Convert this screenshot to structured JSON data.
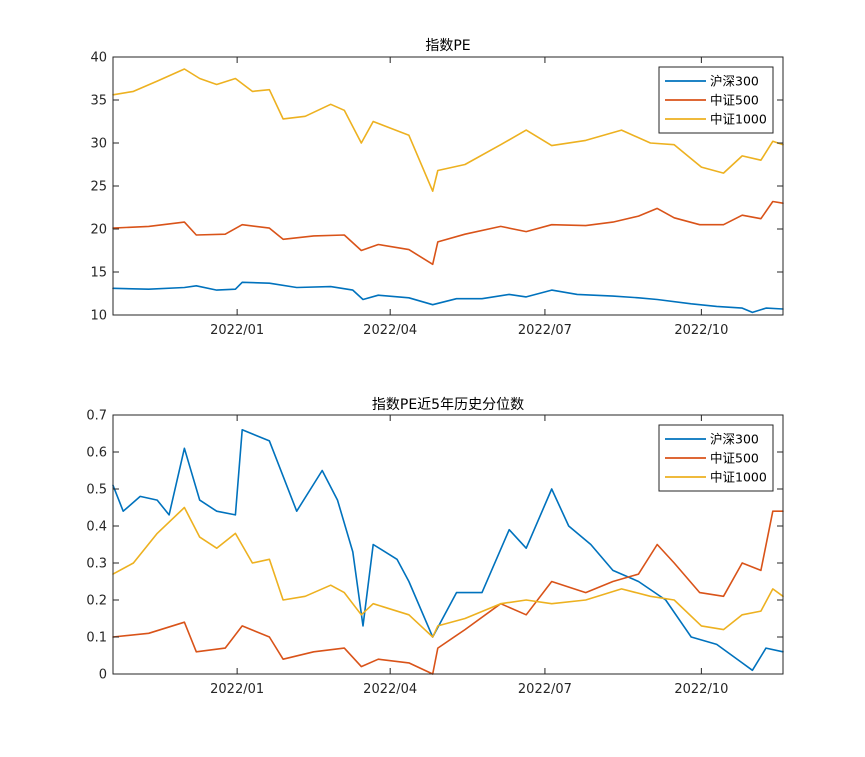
{
  "chart_data": [
    {
      "type": "line",
      "title": "指数PE",
      "xlabel": "",
      "ylabel": "",
      "x_range": [
        "2021-10-20",
        "2022-11-18"
      ],
      "ylim": [
        10,
        40
      ],
      "x_ticks": [
        {
          "date": "2022-01-01",
          "label": "2022/01"
        },
        {
          "date": "2022-04-01",
          "label": "2022/04"
        },
        {
          "date": "2022-07-01",
          "label": "2022/07"
        },
        {
          "date": "2022-10-01",
          "label": "2022/10"
        }
      ],
      "y_ticks": [
        {
          "value": 10,
          "label": "10"
        },
        {
          "value": 15,
          "label": "15"
        },
        {
          "value": 20,
          "label": "20"
        },
        {
          "value": 25,
          "label": "25"
        },
        {
          "value": 30,
          "label": "30"
        },
        {
          "value": 35,
          "label": "35"
        },
        {
          "value": 40,
          "label": "40"
        }
      ],
      "grid": false,
      "legend_position": "top-right",
      "series": [
        {
          "name": "沪深300",
          "color": "#0072BD",
          "points": [
            [
              "2021-10-20",
              13.1
            ],
            [
              "2021-11-10",
              13.0
            ],
            [
              "2021-12-01",
              13.2
            ],
            [
              "2021-12-08",
              13.4
            ],
            [
              "2021-12-20",
              12.9
            ],
            [
              "2021-12-31",
              13.0
            ],
            [
              "2022-01-04",
              13.8
            ],
            [
              "2022-01-20",
              13.7
            ],
            [
              "2022-02-05",
              13.2
            ],
            [
              "2022-02-25",
              13.3
            ],
            [
              "2022-03-10",
              12.9
            ],
            [
              "2022-03-16",
              11.8
            ],
            [
              "2022-03-25",
              12.3
            ],
            [
              "2022-04-12",
              12.0
            ],
            [
              "2022-04-26",
              11.2
            ],
            [
              "2022-05-10",
              11.9
            ],
            [
              "2022-05-25",
              11.9
            ],
            [
              "2022-06-10",
              12.4
            ],
            [
              "2022-06-20",
              12.1
            ],
            [
              "2022-07-05",
              12.9
            ],
            [
              "2022-07-20",
              12.4
            ],
            [
              "2022-08-10",
              12.2
            ],
            [
              "2022-08-25",
              12.0
            ],
            [
              "2022-09-05",
              11.8
            ],
            [
              "2022-09-25",
              11.3
            ],
            [
              "2022-10-10",
              11.0
            ],
            [
              "2022-10-25",
              10.8
            ],
            [
              "2022-10-31",
              10.3
            ],
            [
              "2022-11-08",
              10.8
            ],
            [
              "2022-11-18",
              10.7
            ]
          ]
        },
        {
          "name": "中证500",
          "color": "#D95319",
          "points": [
            [
              "2021-10-20",
              20.1
            ],
            [
              "2021-11-10",
              20.3
            ],
            [
              "2021-12-01",
              20.8
            ],
            [
              "2021-12-08",
              19.3
            ],
            [
              "2021-12-25",
              19.4
            ],
            [
              "2022-01-04",
              20.5
            ],
            [
              "2022-01-20",
              20.1
            ],
            [
              "2022-01-28",
              18.8
            ],
            [
              "2022-02-15",
              19.2
            ],
            [
              "2022-03-05",
              19.3
            ],
            [
              "2022-03-15",
              17.5
            ],
            [
              "2022-03-25",
              18.2
            ],
            [
              "2022-04-12",
              17.6
            ],
            [
              "2022-04-26",
              15.9
            ],
            [
              "2022-04-29",
              18.5
            ],
            [
              "2022-05-15",
              19.4
            ],
            [
              "2022-06-05",
              20.3
            ],
            [
              "2022-06-20",
              19.7
            ],
            [
              "2022-07-05",
              20.5
            ],
            [
              "2022-07-25",
              20.4
            ],
            [
              "2022-08-10",
              20.8
            ],
            [
              "2022-08-25",
              21.5
            ],
            [
              "2022-09-05",
              22.4
            ],
            [
              "2022-09-15",
              21.3
            ],
            [
              "2022-09-30",
              20.5
            ],
            [
              "2022-10-14",
              20.5
            ],
            [
              "2022-10-25",
              21.6
            ],
            [
              "2022-11-05",
              21.2
            ],
            [
              "2022-11-12",
              23.2
            ],
            [
              "2022-11-18",
              23.0
            ]
          ]
        },
        {
          "name": "中证1000",
          "color": "#EDB120",
          "points": [
            [
              "2021-10-20",
              35.6
            ],
            [
              "2021-11-01",
              36.0
            ],
            [
              "2021-11-15",
              37.2
            ],
            [
              "2021-12-01",
              38.6
            ],
            [
              "2021-12-10",
              37.5
            ],
            [
              "2021-12-20",
              36.8
            ],
            [
              "2021-12-31",
              37.5
            ],
            [
              "2022-01-10",
              36.0
            ],
            [
              "2022-01-20",
              36.2
            ],
            [
              "2022-01-28",
              32.8
            ],
            [
              "2022-02-10",
              33.1
            ],
            [
              "2022-02-25",
              34.5
            ],
            [
              "2022-03-05",
              33.8
            ],
            [
              "2022-03-15",
              30.0
            ],
            [
              "2022-03-22",
              32.5
            ],
            [
              "2022-04-12",
              30.9
            ],
            [
              "2022-04-26",
              24.4
            ],
            [
              "2022-04-29",
              26.8
            ],
            [
              "2022-05-15",
              27.5
            ],
            [
              "2022-06-05",
              29.8
            ],
            [
              "2022-06-20",
              31.5
            ],
            [
              "2022-07-05",
              29.7
            ],
            [
              "2022-07-25",
              30.3
            ],
            [
              "2022-08-15",
              31.5
            ],
            [
              "2022-09-01",
              30.0
            ],
            [
              "2022-09-15",
              29.8
            ],
            [
              "2022-10-01",
              27.2
            ],
            [
              "2022-10-14",
              26.5
            ],
            [
              "2022-10-25",
              28.5
            ],
            [
              "2022-11-05",
              28.0
            ],
            [
              "2022-11-12",
              30.2
            ],
            [
              "2022-11-18",
              29.8
            ]
          ]
        }
      ]
    },
    {
      "type": "line",
      "title": "指数PE近5年历史分位数",
      "xlabel": "",
      "ylabel": "",
      "x_range": [
        "2021-10-20",
        "2022-11-18"
      ],
      "ylim": [
        0,
        0.7
      ],
      "x_ticks": [
        {
          "date": "2022-01-01",
          "label": "2022/01"
        },
        {
          "date": "2022-04-01",
          "label": "2022/04"
        },
        {
          "date": "2022-07-01",
          "label": "2022/07"
        },
        {
          "date": "2022-10-01",
          "label": "2022/10"
        }
      ],
      "y_ticks": [
        {
          "value": 0,
          "label": "0"
        },
        {
          "value": 0.1,
          "label": "0.1"
        },
        {
          "value": 0.2,
          "label": "0.2"
        },
        {
          "value": 0.3,
          "label": "0.3"
        },
        {
          "value": 0.4,
          "label": "0.4"
        },
        {
          "value": 0.5,
          "label": "0.5"
        },
        {
          "value": 0.6,
          "label": "0.6"
        },
        {
          "value": 0.7,
          "label": "0.7"
        }
      ],
      "grid": false,
      "legend_position": "top-right",
      "series": [
        {
          "name": "沪深300",
          "color": "#0072BD",
          "points": [
            [
              "2021-10-20",
              0.51
            ],
            [
              "2021-10-26",
              0.44
            ],
            [
              "2021-11-05",
              0.48
            ],
            [
              "2021-11-15",
              0.47
            ],
            [
              "2021-11-22",
              0.43
            ],
            [
              "2021-12-01",
              0.61
            ],
            [
              "2021-12-10",
              0.47
            ],
            [
              "2021-12-20",
              0.44
            ],
            [
              "2021-12-31",
              0.43
            ],
            [
              "2022-01-04",
              0.66
            ],
            [
              "2022-01-20",
              0.63
            ],
            [
              "2022-02-05",
              0.44
            ],
            [
              "2022-02-20",
              0.55
            ],
            [
              "2022-03-01",
              0.47
            ],
            [
              "2022-03-10",
              0.33
            ],
            [
              "2022-03-16",
              0.13
            ],
            [
              "2022-03-22",
              0.35
            ],
            [
              "2022-04-05",
              0.31
            ],
            [
              "2022-04-12",
              0.25
            ],
            [
              "2022-04-26",
              0.1
            ],
            [
              "2022-05-10",
              0.22
            ],
            [
              "2022-05-25",
              0.22
            ],
            [
              "2022-06-10",
              0.39
            ],
            [
              "2022-06-20",
              0.34
            ],
            [
              "2022-07-05",
              0.5
            ],
            [
              "2022-07-15",
              0.4
            ],
            [
              "2022-07-28",
              0.35
            ],
            [
              "2022-08-10",
              0.28
            ],
            [
              "2022-08-25",
              0.25
            ],
            [
              "2022-09-10",
              0.2
            ],
            [
              "2022-09-25",
              0.1
            ],
            [
              "2022-10-10",
              0.08
            ],
            [
              "2022-10-25",
              0.03
            ],
            [
              "2022-10-31",
              0.01
            ],
            [
              "2022-11-08",
              0.07
            ],
            [
              "2022-11-18",
              0.06
            ]
          ]
        },
        {
          "name": "中证500",
          "color": "#D95319",
          "points": [
            [
              "2021-10-20",
              0.1
            ],
            [
              "2021-11-10",
              0.11
            ],
            [
              "2021-12-01",
              0.14
            ],
            [
              "2021-12-08",
              0.06
            ],
            [
              "2021-12-25",
              0.07
            ],
            [
              "2022-01-04",
              0.13
            ],
            [
              "2022-01-20",
              0.1
            ],
            [
              "2022-01-28",
              0.04
            ],
            [
              "2022-02-15",
              0.06
            ],
            [
              "2022-03-05",
              0.07
            ],
            [
              "2022-03-15",
              0.02
            ],
            [
              "2022-03-25",
              0.04
            ],
            [
              "2022-04-12",
              0.03
            ],
            [
              "2022-04-26",
              0.0
            ],
            [
              "2022-04-29",
              0.07
            ],
            [
              "2022-05-15",
              0.12
            ],
            [
              "2022-06-05",
              0.19
            ],
            [
              "2022-06-20",
              0.16
            ],
            [
              "2022-07-05",
              0.25
            ],
            [
              "2022-07-25",
              0.22
            ],
            [
              "2022-08-10",
              0.25
            ],
            [
              "2022-08-25",
              0.27
            ],
            [
              "2022-09-05",
              0.35
            ],
            [
              "2022-09-15",
              0.3
            ],
            [
              "2022-09-30",
              0.22
            ],
            [
              "2022-10-14",
              0.21
            ],
            [
              "2022-10-25",
              0.3
            ],
            [
              "2022-11-05",
              0.28
            ],
            [
              "2022-11-12",
              0.44
            ],
            [
              "2022-11-18",
              0.44
            ]
          ]
        },
        {
          "name": "中证1000",
          "color": "#EDB120",
          "points": [
            [
              "2021-10-20",
              0.27
            ],
            [
              "2021-11-01",
              0.3
            ],
            [
              "2021-11-15",
              0.38
            ],
            [
              "2021-12-01",
              0.45
            ],
            [
              "2021-12-10",
              0.37
            ],
            [
              "2021-12-20",
              0.34
            ],
            [
              "2021-12-31",
              0.38
            ],
            [
              "2022-01-10",
              0.3
            ],
            [
              "2022-01-20",
              0.31
            ],
            [
              "2022-01-28",
              0.2
            ],
            [
              "2022-02-10",
              0.21
            ],
            [
              "2022-02-25",
              0.24
            ],
            [
              "2022-03-05",
              0.22
            ],
            [
              "2022-03-15",
              0.16
            ],
            [
              "2022-03-22",
              0.19
            ],
            [
              "2022-04-12",
              0.16
            ],
            [
              "2022-04-26",
              0.1
            ],
            [
              "2022-04-29",
              0.13
            ],
            [
              "2022-05-15",
              0.15
            ],
            [
              "2022-06-05",
              0.19
            ],
            [
              "2022-06-20",
              0.2
            ],
            [
              "2022-07-05",
              0.19
            ],
            [
              "2022-07-25",
              0.2
            ],
            [
              "2022-08-15",
              0.23
            ],
            [
              "2022-09-01",
              0.21
            ],
            [
              "2022-09-15",
              0.2
            ],
            [
              "2022-10-01",
              0.13
            ],
            [
              "2022-10-14",
              0.12
            ],
            [
              "2022-10-25",
              0.16
            ],
            [
              "2022-11-05",
              0.17
            ],
            [
              "2022-11-12",
              0.23
            ],
            [
              "2022-11-18",
              0.21
            ]
          ]
        }
      ]
    }
  ]
}
